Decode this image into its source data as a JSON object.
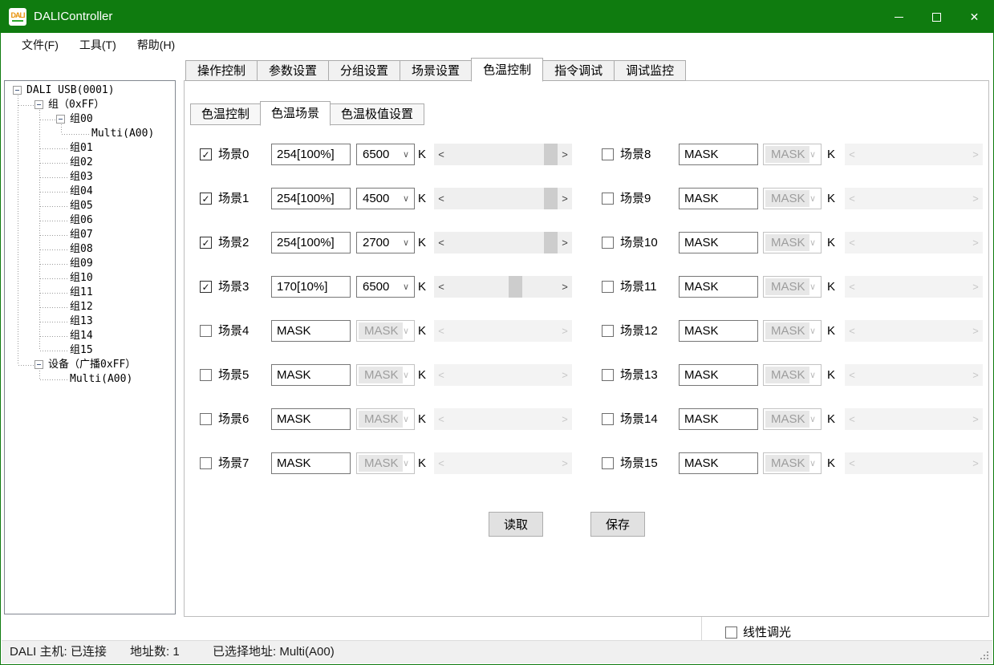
{
  "colors": {
    "titlebar_green": "#0f7b0f",
    "window_border_green": "#0f7b0f",
    "tree_border_gray": "#828790",
    "scrollbar_thumb": "#cdcdcd",
    "button_face": "#e1e1e1"
  },
  "window": {
    "title": "DALIController",
    "icon_label": "DALI"
  },
  "menu": {
    "items": [
      "文件(F)",
      "工具(T)",
      "帮助(H)"
    ]
  },
  "tree": {
    "items": [
      {
        "label": "DALI USB(0001)",
        "level": 0,
        "expander": true
      },
      {
        "label": "组（0xFF）",
        "level": 1,
        "expander": true
      },
      {
        "label": "组00",
        "level": 2,
        "expander": true
      },
      {
        "label": "Multi(A00)",
        "level": 3,
        "expander": false
      },
      {
        "label": "组01",
        "level": 2,
        "expander": false
      },
      {
        "label": "组02",
        "level": 2,
        "expander": false
      },
      {
        "label": "组03",
        "level": 2,
        "expander": false
      },
      {
        "label": "组04",
        "level": 2,
        "expander": false
      },
      {
        "label": "组05",
        "level": 2,
        "expander": false
      },
      {
        "label": "组06",
        "level": 2,
        "expander": false
      },
      {
        "label": "组07",
        "level": 2,
        "expander": false
      },
      {
        "label": "组08",
        "level": 2,
        "expander": false
      },
      {
        "label": "组09",
        "level": 2,
        "expander": false
      },
      {
        "label": "组10",
        "level": 2,
        "expander": false
      },
      {
        "label": "组11",
        "level": 2,
        "expander": false
      },
      {
        "label": "组12",
        "level": 2,
        "expander": false
      },
      {
        "label": "组13",
        "level": 2,
        "expander": false
      },
      {
        "label": "组14",
        "level": 2,
        "expander": false
      },
      {
        "label": "组15",
        "level": 2,
        "expander": false
      },
      {
        "label": "设备（广播0xFF）",
        "level": 1,
        "expander": true
      },
      {
        "label": "Multi(A00)",
        "level": 2,
        "expander": false
      }
    ]
  },
  "main_tabs": {
    "selected": "色温控制",
    "items": [
      "操作控制",
      "参数设置",
      "分组设置",
      "场景设置",
      "色温控制",
      "指令调试",
      "调试监控"
    ]
  },
  "sub_tabs": {
    "selected": "色温场景",
    "items": [
      "色温控制",
      "色温场景",
      "色温极值设置"
    ]
  },
  "scene_panel": {
    "unit": "K",
    "read_button": "读取",
    "save_button": "保存",
    "scenes": [
      {
        "label": "场景0",
        "checked": true,
        "enabled": true,
        "level": "254[100%]",
        "temp": "6500",
        "thumb_pct": 100
      },
      {
        "label": "场景1",
        "checked": true,
        "enabled": true,
        "level": "254[100%]",
        "temp": "4500",
        "thumb_pct": 100
      },
      {
        "label": "场景2",
        "checked": true,
        "enabled": true,
        "level": "254[100%]",
        "temp": "2700",
        "thumb_pct": 100
      },
      {
        "label": "场景3",
        "checked": true,
        "enabled": true,
        "level": "170[10%]",
        "temp": "6500",
        "thumb_pct": 63
      },
      {
        "label": "场景4",
        "checked": false,
        "enabled": false,
        "level": "MASK",
        "temp": "MASK",
        "thumb_pct": null
      },
      {
        "label": "场景5",
        "checked": false,
        "enabled": false,
        "level": "MASK",
        "temp": "MASK",
        "thumb_pct": null
      },
      {
        "label": "场景6",
        "checked": false,
        "enabled": false,
        "level": "MASK",
        "temp": "MASK",
        "thumb_pct": null
      },
      {
        "label": "场景7",
        "checked": false,
        "enabled": false,
        "level": "MASK",
        "temp": "MASK",
        "thumb_pct": null
      },
      {
        "label": "场景8",
        "checked": false,
        "enabled": false,
        "level": "MASK",
        "temp": "MASK",
        "thumb_pct": null
      },
      {
        "label": "场景9",
        "checked": false,
        "enabled": false,
        "level": "MASK",
        "temp": "MASK",
        "thumb_pct": null
      },
      {
        "label": "场景10",
        "checked": false,
        "enabled": false,
        "level": "MASK",
        "temp": "MASK",
        "thumb_pct": null
      },
      {
        "label": "场景11",
        "checked": false,
        "enabled": false,
        "level": "MASK",
        "temp": "MASK",
        "thumb_pct": null
      },
      {
        "label": "场景12",
        "checked": false,
        "enabled": false,
        "level": "MASK",
        "temp": "MASK",
        "thumb_pct": null
      },
      {
        "label": "场景13",
        "checked": false,
        "enabled": false,
        "level": "MASK",
        "temp": "MASK",
        "thumb_pct": null
      },
      {
        "label": "场景14",
        "checked": false,
        "enabled": false,
        "level": "MASK",
        "temp": "MASK",
        "thumb_pct": null
      },
      {
        "label": "场景15",
        "checked": false,
        "enabled": false,
        "level": "MASK",
        "temp": "MASK",
        "thumb_pct": null
      }
    ]
  },
  "footer": {
    "linear_dimming_label": "线性调光",
    "linear_dimming_checked": false
  },
  "status_bar": {
    "host_status": "DALI 主机: 已连接",
    "address_count": "地址数: 1",
    "selected_address": "已选择地址: Multi(A00)"
  },
  "icons": {
    "check": "✓",
    "chevron_down": "∨",
    "scroll_left": "<",
    "scroll_right": ">",
    "close": "✕"
  }
}
